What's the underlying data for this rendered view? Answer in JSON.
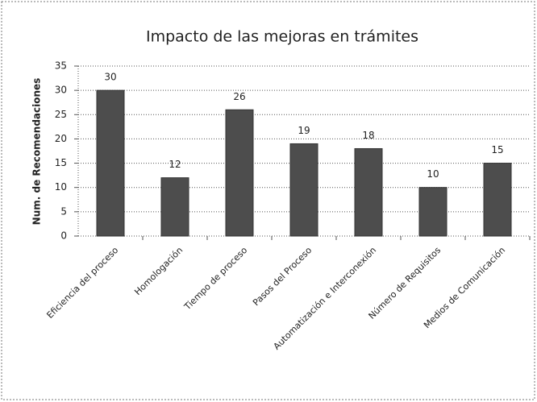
{
  "chart_data": {
    "type": "bar",
    "title": "Impacto de las mejoras en trámites",
    "y_label": "Num. de Recomendaciones",
    "categories": [
      "Eficiencia del proceso",
      "Homologación",
      "Tiempo de proceso",
      "Pasos del Proceso",
      "Automatización e Interconexión",
      "Número de Requisitos",
      "Medios de Comunicación"
    ],
    "values": [
      30,
      12,
      26,
      19,
      18,
      10,
      15
    ],
    "color": "#4d4d4d",
    "ylim": [
      0,
      35
    ],
    "yticks": [
      0,
      5,
      10,
      15,
      20,
      25,
      30,
      35
    ],
    "grid": true
  }
}
